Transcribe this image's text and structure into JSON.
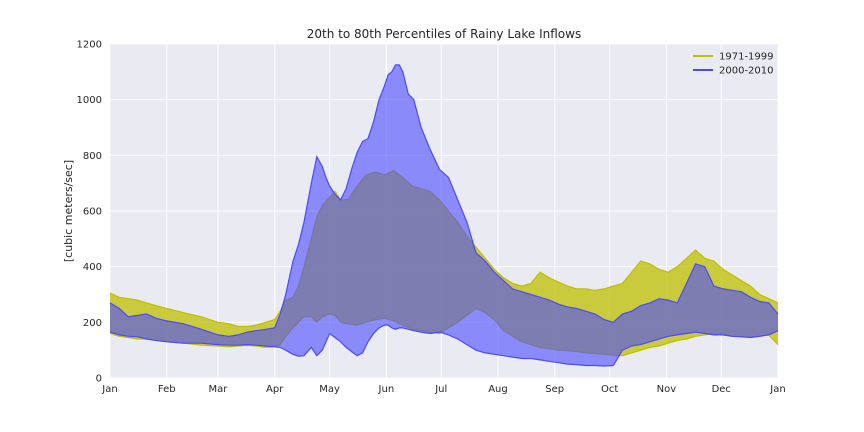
{
  "chart_data": {
    "type": "area",
    "title": "20th to 80th Percentiles of Rainy Lake Inflows",
    "xlabel": "",
    "ylabel": "[cubic meters/sec]",
    "ylim": [
      0,
      1200
    ],
    "yticks": [
      0,
      200,
      400,
      600,
      800,
      1000,
      1200
    ],
    "xlim": [
      0,
      365
    ],
    "xticks": [
      {
        "day": 0,
        "label": "Jan"
      },
      {
        "day": 31,
        "label": "Feb"
      },
      {
        "day": 59,
        "label": "Mar"
      },
      {
        "day": 90,
        "label": "Apr"
      },
      {
        "day": 120,
        "label": "May"
      },
      {
        "day": 151,
        "label": "Jun"
      },
      {
        "day": 181,
        "label": "Jul"
      },
      {
        "day": 212,
        "label": "Aug"
      },
      {
        "day": 243,
        "label": "Sep"
      },
      {
        "day": 273,
        "label": "Oct"
      },
      {
        "day": 304,
        "label": "Nov"
      },
      {
        "day": 334,
        "label": "Dec"
      },
      {
        "day": 365,
        "label": "Jan"
      }
    ],
    "grid": true,
    "legend_position": "top-right",
    "series": [
      {
        "name": "1971-1999",
        "color": "#bfbf00",
        "x": [
          0,
          5,
          10,
          15,
          20,
          25,
          31,
          40,
          50,
          59,
          65,
          70,
          75,
          80,
          85,
          90,
          93,
          96,
          100,
          103,
          106,
          110,
          113,
          116,
          120,
          123,
          126,
          130,
          135,
          140,
          145,
          150,
          155,
          160,
          165,
          170,
          175,
          180,
          185,
          190,
          195,
          200,
          205,
          210,
          215,
          220,
          225,
          230,
          235,
          240,
          245,
          250,
          255,
          260,
          265,
          270,
          275,
          280,
          285,
          290,
          295,
          300,
          305,
          310,
          315,
          320,
          325,
          330,
          335,
          340,
          345,
          350,
          355,
          360,
          365
        ],
        "upper": [
          305,
          290,
          285,
          280,
          270,
          260,
          250,
          235,
          220,
          200,
          195,
          185,
          185,
          190,
          200,
          210,
          240,
          280,
          290,
          330,
          400,
          500,
          580,
          620,
          650,
          670,
          640,
          640,
          690,
          730,
          740,
          730,
          745,
          720,
          690,
          680,
          670,
          640,
          600,
          560,
          510,
          470,
          430,
          390,
          360,
          340,
          330,
          340,
          380,
          360,
          345,
          330,
          320,
          320,
          315,
          320,
          330,
          340,
          380,
          420,
          410,
          390,
          380,
          400,
          430,
          460,
          430,
          420,
          390,
          370,
          350,
          330,
          300,
          285,
          270
        ],
        "lower": [
          160,
          150,
          145,
          140,
          140,
          135,
          130,
          125,
          118,
          115,
          112,
          115,
          118,
          115,
          110,
          112,
          120,
          150,
          180,
          200,
          220,
          220,
          200,
          220,
          230,
          225,
          200,
          195,
          190,
          200,
          210,
          215,
          205,
          190,
          175,
          170,
          165,
          160,
          180,
          200,
          225,
          250,
          235,
          210,
          170,
          150,
          130,
          120,
          110,
          105,
          100,
          98,
          95,
          90,
          88,
          85,
          82,
          80,
          90,
          100,
          110,
          115,
          125,
          135,
          140,
          150,
          155,
          160,
          155,
          150,
          148,
          145,
          150,
          155,
          120
        ]
      },
      {
        "name": "2000-2010",
        "color": "#4a4aff",
        "x": [
          0,
          5,
          10,
          15,
          20,
          25,
          31,
          40,
          50,
          59,
          65,
          70,
          75,
          80,
          85,
          90,
          93,
          96,
          100,
          103,
          106,
          110,
          113,
          116,
          118,
          120,
          123,
          126,
          129,
          132,
          135,
          138,
          141,
          144,
          147,
          150,
          152,
          154,
          156,
          158,
          160,
          163,
          166,
          170,
          175,
          180,
          185,
          190,
          195,
          200,
          205,
          210,
          215,
          220,
          225,
          230,
          235,
          240,
          245,
          250,
          255,
          260,
          265,
          270,
          275,
          280,
          285,
          290,
          295,
          300,
          305,
          310,
          315,
          320,
          325,
          330,
          335,
          340,
          345,
          350,
          355,
          360,
          365
        ],
        "upper": [
          270,
          250,
          220,
          225,
          230,
          215,
          205,
          195,
          175,
          155,
          150,
          155,
          165,
          170,
          175,
          180,
          230,
          300,
          420,
          480,
          560,
          700,
          795,
          760,
          720,
          690,
          660,
          640,
          680,
          750,
          810,
          850,
          860,
          920,
          1000,
          1050,
          1090,
          1100,
          1125,
          1125,
          1100,
          1020,
          1000,
          900,
          820,
          750,
          720,
          640,
          560,
          450,
          420,
          380,
          350,
          320,
          310,
          300,
          290,
          280,
          265,
          255,
          250,
          240,
          230,
          210,
          200,
          230,
          240,
          260,
          270,
          285,
          280,
          270,
          340,
          410,
          400,
          330,
          320,
          315,
          310,
          290,
          275,
          270,
          230
        ],
        "lower": [
          165,
          155,
          150,
          148,
          140,
          135,
          130,
          125,
          125,
          120,
          118,
          118,
          120,
          118,
          115,
          112,
          110,
          100,
          85,
          78,
          80,
          110,
          80,
          100,
          130,
          160,
          145,
          130,
          110,
          95,
          80,
          90,
          130,
          160,
          180,
          190,
          190,
          180,
          175,
          180,
          180,
          175,
          170,
          165,
          160,
          165,
          155,
          140,
          120,
          100,
          90,
          85,
          80,
          75,
          70,
          70,
          65,
          60,
          55,
          50,
          48,
          45,
          45,
          43,
          45,
          100,
          115,
          120,
          130,
          140,
          150,
          155,
          160,
          165,
          160,
          155,
          155,
          150,
          148,
          146,
          150,
          155,
          170
        ]
      }
    ]
  }
}
